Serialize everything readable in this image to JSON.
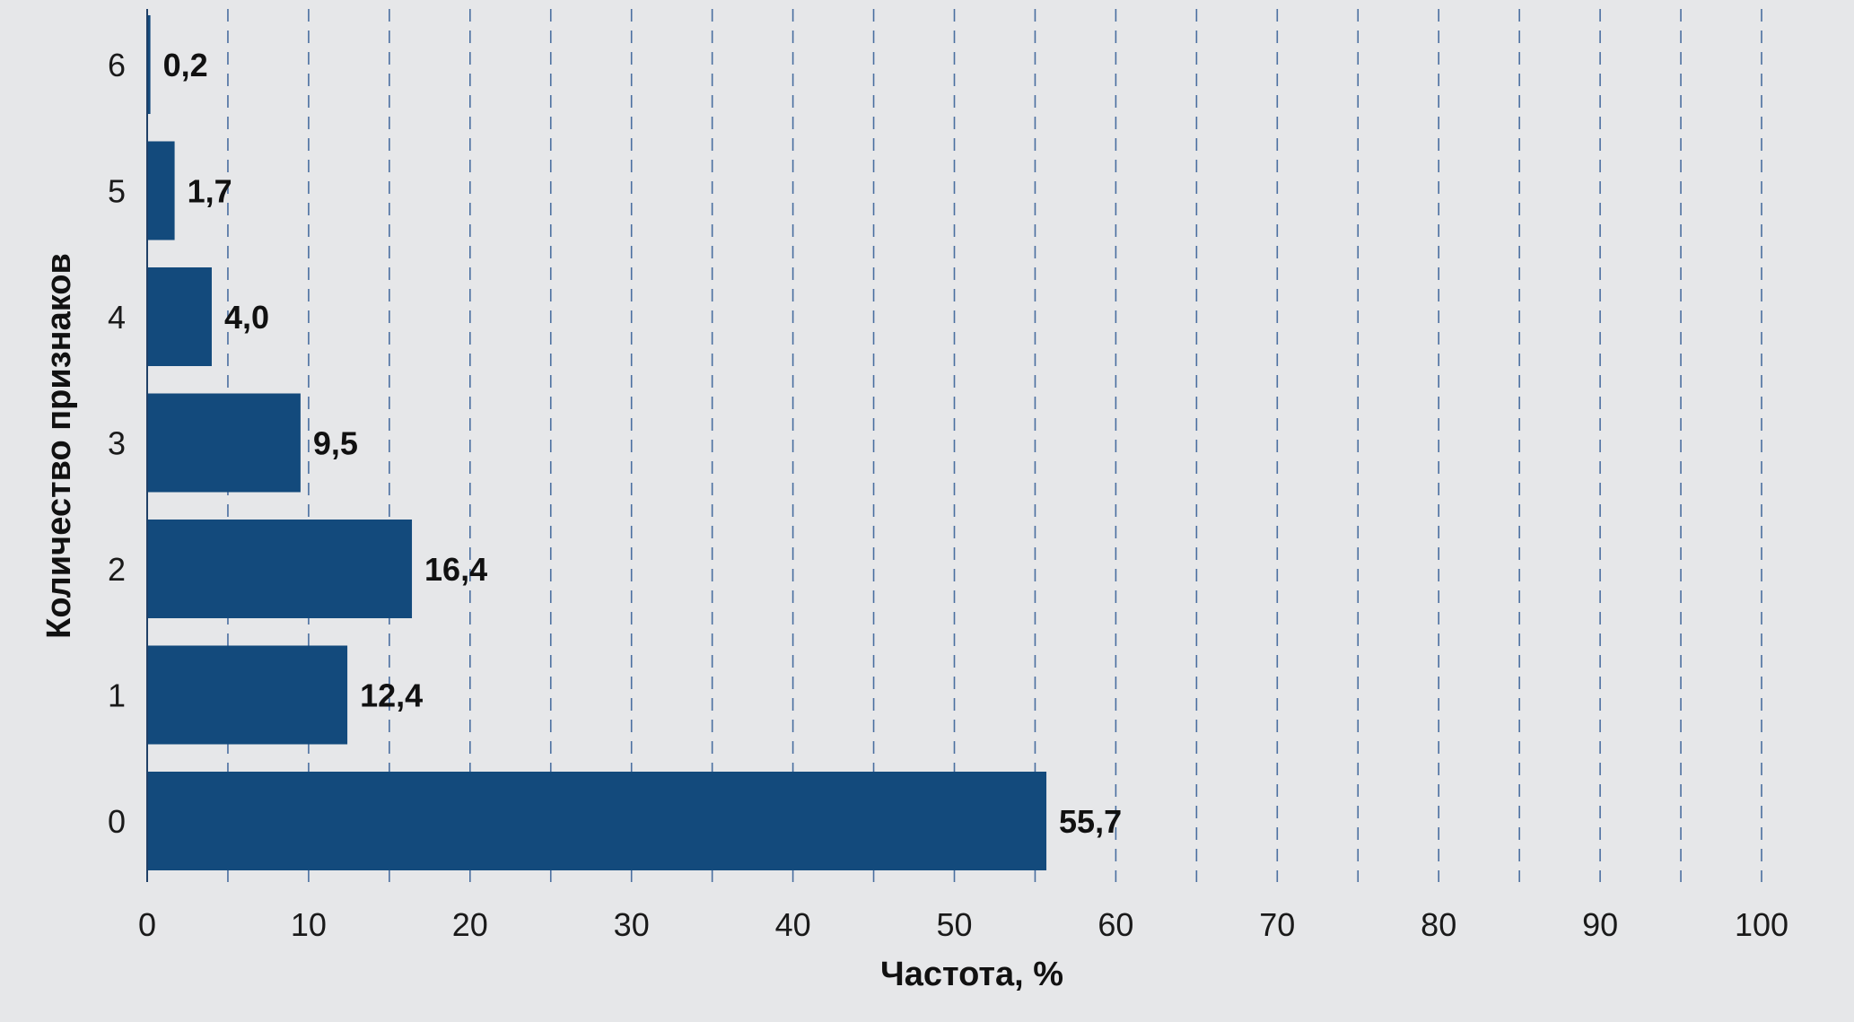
{
  "chart_data": {
    "type": "bar",
    "orientation": "horizontal",
    "categories": [
      "0",
      "1",
      "2",
      "3",
      "4",
      "5",
      "6"
    ],
    "values": [
      55.7,
      12.4,
      16.4,
      9.5,
      4.0,
      1.7,
      0.2
    ],
    "value_labels": [
      "55,7",
      "12,4",
      "16,4",
      "9,5",
      "4,0",
      "1,7",
      "0,2"
    ],
    "xlabel": "Частота, %",
    "ylabel": "Количество признаков",
    "xlim": [
      0,
      100
    ],
    "x_ticks": [
      0,
      10,
      20,
      30,
      40,
      50,
      60,
      70,
      80,
      90,
      100
    ],
    "grid": "vertical dashed every 5",
    "bar_color": "#134a7c",
    "grid_color": "#4a6fa0"
  }
}
